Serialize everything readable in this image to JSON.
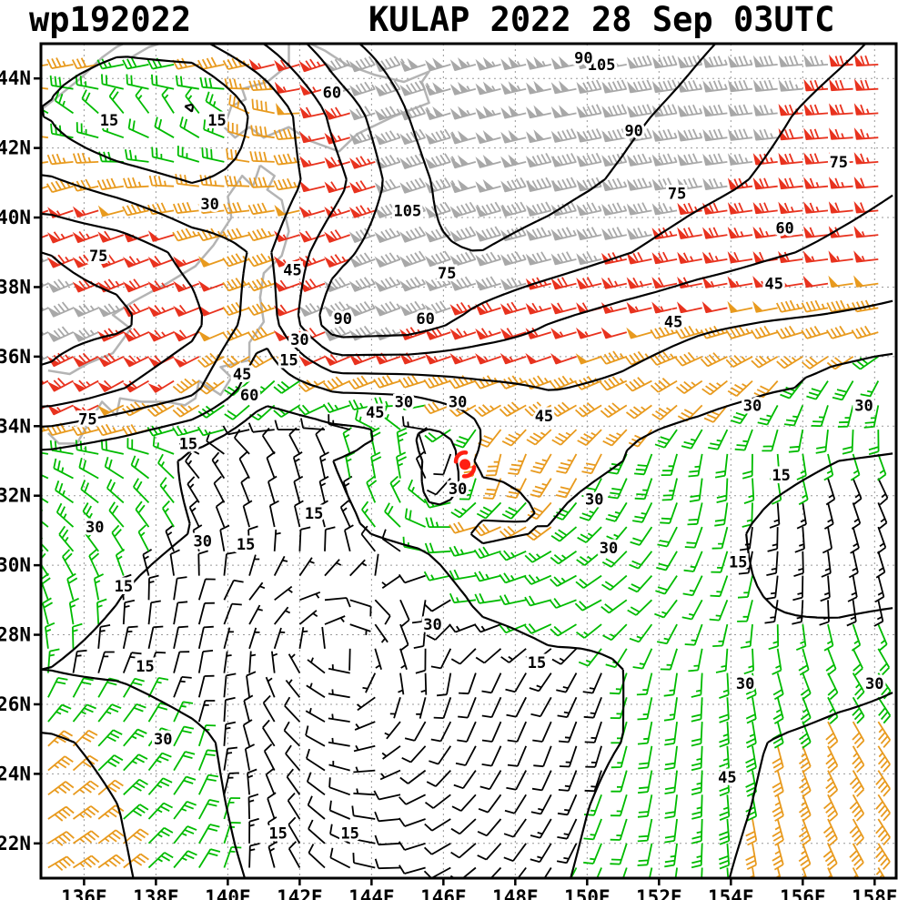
{
  "header": {
    "storm_id": "wp192022",
    "title": "KULAP 2022 28 Sep 03UTC"
  },
  "axes": {
    "lon_min": 134.8,
    "lon_max": 158.6,
    "lat_min": 21.0,
    "lat_max": 45.0,
    "x_ticks": [
      {
        "lon": 136,
        "label": "136E"
      },
      {
        "lon": 138,
        "label": "138E"
      },
      {
        "lon": 140,
        "label": "140E"
      },
      {
        "lon": 142,
        "label": "142E"
      },
      {
        "lon": 144,
        "label": "144E"
      },
      {
        "lon": 146,
        "label": "146E"
      },
      {
        "lon": 148,
        "label": "148E"
      },
      {
        "lon": 150,
        "label": "150E"
      },
      {
        "lon": 152,
        "label": "152E"
      },
      {
        "lon": 154,
        "label": "154E"
      },
      {
        "lon": 156,
        "label": "156E"
      },
      {
        "lon": 158,
        "label": "158E"
      }
    ],
    "y_ticks": [
      {
        "lat": 22,
        "label": "22N"
      },
      {
        "lat": 24,
        "label": "24N"
      },
      {
        "lat": 26,
        "label": "26N"
      },
      {
        "lat": 28,
        "label": "28N"
      },
      {
        "lat": 30,
        "label": "30N"
      },
      {
        "lat": 32,
        "label": "32N"
      },
      {
        "lat": 34,
        "label": "34N"
      },
      {
        "lat": 36,
        "label": "36N"
      },
      {
        "lat": 38,
        "label": "38N"
      },
      {
        "lat": 40,
        "label": "40N"
      },
      {
        "lat": 42,
        "label": "42N"
      },
      {
        "lat": 44,
        "label": "44N"
      }
    ]
  },
  "colors": {
    "contour": "#000000",
    "grid": "#999999",
    "coast": "#b4b4b4",
    "border": "#000000",
    "storm": "#ff1f12",
    "label_halo": "#ffffff"
  },
  "speed_bins": [
    {
      "lt": 15,
      "color": "#000000",
      "name": "calm-light"
    },
    {
      "lt": 30,
      "color": "#00bb00",
      "name": "green-15-30"
    },
    {
      "lt": 50,
      "color": "#e89a1e",
      "name": "orange-30-50"
    },
    {
      "lt": 75,
      "color": "#e8321e",
      "name": "red-50-75"
    },
    {
      "lt": 999,
      "color": "#a8a8a8",
      "name": "gray-75plus"
    }
  ],
  "chart_data": {
    "type": "wind-barb-map",
    "units": "kt",
    "contour_levels": [
      15,
      30,
      45,
      60,
      75,
      90,
      105
    ],
    "barb_spacing_deg": 0.7,
    "storm": {
      "name": "KULAP",
      "lon": 146.6,
      "lat": 32.9
    },
    "grid": {
      "lons": [
        135,
        137,
        139,
        141,
        143,
        145,
        147,
        149,
        151,
        153,
        155,
        157,
        159
      ],
      "lats": [
        45,
        43,
        41,
        39,
        37,
        35,
        33,
        31,
        29,
        27,
        25,
        23,
        21
      ],
      "speed_kt": [
        [
          45,
          35,
          40,
          60,
          85,
          100,
          105,
          105,
          100,
          92,
          85,
          78,
          70
        ],
        [
          30,
          18,
          15,
          35,
          65,
          90,
          105,
          100,
          93,
          86,
          78,
          70,
          63
        ],
        [
          48,
          38,
          30,
          35,
          55,
          85,
          100,
          95,
          88,
          80,
          73,
          66,
          60
        ],
        [
          75,
          70,
          55,
          42,
          70,
          88,
          90,
          84,
          76,
          68,
          62,
          57,
          52
        ],
        [
          80,
          78,
          65,
          35,
          88,
          85,
          70,
          60,
          53,
          48,
          45,
          43,
          41
        ],
        [
          72,
          60,
          48,
          20,
          30,
          32,
          40,
          45,
          42,
          37,
          31,
          29,
          27
        ],
        [
          25,
          20,
          14,
          12,
          15,
          28,
          35,
          36,
          30,
          24,
          17,
          15,
          14
        ],
        [
          28,
          22,
          15,
          8,
          12,
          22,
          33,
          30,
          24,
          18,
          14,
          12,
          15
        ],
        [
          20,
          15,
          10,
          7,
          8,
          12,
          18,
          22,
          20,
          17,
          15,
          13,
          14
        ],
        [
          15,
          13,
          8,
          5,
          5,
          7,
          10,
          13,
          15,
          16,
          18,
          22,
          28
        ],
        [
          32,
          26,
          18,
          12,
          8,
          8,
          10,
          12,
          15,
          22,
          30,
          35,
          38
        ],
        [
          38,
          30,
          20,
          12,
          8,
          8,
          10,
          13,
          17,
          24,
          32,
          40,
          44
        ],
        [
          40,
          32,
          22,
          14,
          10,
          9,
          11,
          14,
          18,
          26,
          35,
          42,
          46
        ]
      ],
      "dir_from_deg": [
        [
          250,
          248,
          250,
          250,
          250,
          252,
          255,
          258,
          260,
          262,
          264,
          266,
          268
        ],
        [
          300,
          320,
          330,
          290,
          255,
          252,
          255,
          258,
          260,
          262,
          264,
          266,
          267
        ],
        [
          252,
          262,
          280,
          272,
          255,
          252,
          254,
          257,
          259,
          261,
          263,
          265,
          266
        ],
        [
          248,
          249,
          250,
          252,
          250,
          250,
          253,
          256,
          258,
          260,
          262,
          263,
          264
        ],
        [
          246,
          247,
          248,
          252,
          248,
          250,
          252,
          254,
          256,
          257,
          258,
          259,
          260
        ],
        [
          242,
          240,
          235,
          215,
          240,
          255,
          250,
          248,
          244,
          232,
          215,
          200,
          192
        ],
        [
          290,
          295,
          315,
          335,
          350,
          0,
          180,
          205,
          200,
          185,
          170,
          158,
          148
        ],
        [
          310,
          320,
          335,
          350,
          345,
          310,
          255,
          235,
          222,
          202,
          184,
          168,
          156
        ],
        [
          340,
          355,
          15,
          45,
          90,
          160,
          265,
          255,
          235,
          210,
          190,
          175,
          162
        ],
        [
          0,
          20,
          10,
          5,
          300,
          165,
          200,
          215,
          200,
          185,
          168,
          152,
          142
        ],
        [
          45,
          40,
          20,
          330,
          290,
          225,
          205,
          200,
          195,
          185,
          168,
          152,
          144
        ],
        [
          55,
          48,
          30,
          345,
          300,
          260,
          225,
          210,
          198,
          184,
          167,
          153,
          143
        ],
        [
          60,
          52,
          35,
          350,
          305,
          265,
          230,
          213,
          200,
          185,
          168,
          155,
          144
        ]
      ]
    },
    "contour_labels": [
      {
        "lon": 136.7,
        "lat": 42.8,
        "v": 15
      },
      {
        "lon": 139.7,
        "lat": 42.8,
        "v": 15
      },
      {
        "lon": 139.5,
        "lat": 40.4,
        "v": 30
      },
      {
        "lon": 141.8,
        "lat": 38.5,
        "v": 45
      },
      {
        "lon": 142.9,
        "lat": 43.6,
        "v": 60
      },
      {
        "lon": 136.4,
        "lat": 38.9,
        "v": 75
      },
      {
        "lon": 143.2,
        "lat": 37.1,
        "v": 90
      },
      {
        "lon": 145.0,
        "lat": 40.2,
        "v": 105
      },
      {
        "lon": 150.4,
        "lat": 44.4,
        "v": 105
      },
      {
        "lon": 149.9,
        "lat": 44.6,
        "v": 90
      },
      {
        "lon": 151.3,
        "lat": 42.5,
        "v": 90
      },
      {
        "lon": 157.0,
        "lat": 41.6,
        "v": 75
      },
      {
        "lon": 152.5,
        "lat": 40.7,
        "v": 75
      },
      {
        "lon": 155.5,
        "lat": 39.7,
        "v": 60
      },
      {
        "lon": 155.2,
        "lat": 38.1,
        "v": 45
      },
      {
        "lon": 146.1,
        "lat": 38.4,
        "v": 75
      },
      {
        "lon": 145.5,
        "lat": 37.1,
        "v": 60
      },
      {
        "lon": 142.0,
        "lat": 36.5,
        "v": 30
      },
      {
        "lon": 141.7,
        "lat": 35.9,
        "v": 15
      },
      {
        "lon": 140.4,
        "lat": 35.5,
        "v": 45
      },
      {
        "lon": 140.6,
        "lat": 34.9,
        "v": 60
      },
      {
        "lon": 136.1,
        "lat": 34.2,
        "v": 75
      },
      {
        "lon": 144.1,
        "lat": 34.4,
        "v": 45
      },
      {
        "lon": 144.9,
        "lat": 34.7,
        "v": 30
      },
      {
        "lon": 146.4,
        "lat": 34.7,
        "v": 30
      },
      {
        "lon": 146.4,
        "lat": 32.2,
        "v": 30
      },
      {
        "lon": 148.8,
        "lat": 34.3,
        "v": 45
      },
      {
        "lon": 152.4,
        "lat": 37.0,
        "v": 45
      },
      {
        "lon": 154.6,
        "lat": 34.6,
        "v": 30
      },
      {
        "lon": 157.7,
        "lat": 34.6,
        "v": 30
      },
      {
        "lon": 155.4,
        "lat": 32.6,
        "v": 15
      },
      {
        "lon": 150.2,
        "lat": 31.9,
        "v": 30
      },
      {
        "lon": 150.6,
        "lat": 30.5,
        "v": 30
      },
      {
        "lon": 154.2,
        "lat": 30.1,
        "v": 15
      },
      {
        "lon": 142.4,
        "lat": 31.5,
        "v": 15
      },
      {
        "lon": 139.3,
        "lat": 30.7,
        "v": 30
      },
      {
        "lon": 140.5,
        "lat": 30.6,
        "v": 15
      },
      {
        "lon": 136.3,
        "lat": 31.1,
        "v": 30
      },
      {
        "lon": 138.9,
        "lat": 33.5,
        "v": 15
      },
      {
        "lon": 137.1,
        "lat": 29.4,
        "v": 15
      },
      {
        "lon": 137.7,
        "lat": 27.1,
        "v": 15
      },
      {
        "lon": 145.7,
        "lat": 28.3,
        "v": 30
      },
      {
        "lon": 148.6,
        "lat": 27.2,
        "v": 15
      },
      {
        "lon": 154.4,
        "lat": 26.6,
        "v": 30
      },
      {
        "lon": 158.0,
        "lat": 26.6,
        "v": 30
      },
      {
        "lon": 138.2,
        "lat": 25.0,
        "v": 30
      },
      {
        "lon": 153.9,
        "lat": 23.9,
        "v": 45
      },
      {
        "lon": 141.4,
        "lat": 22.3,
        "v": 15
      },
      {
        "lon": 143.4,
        "lat": 22.3,
        "v": 15
      }
    ],
    "coastlines": [
      [
        [
          134.8,
          43.1
        ],
        [
          135.3,
          43.5
        ],
        [
          135.9,
          44.0
        ],
        [
          136.5,
          44.6
        ],
        [
          136.9,
          44.9
        ],
        [
          137.1,
          45.0
        ]
      ],
      [
        [
          137.3,
          44.6
        ],
        [
          137.8,
          44.9
        ],
        [
          138.1,
          45.0
        ]
      ],
      [
        [
          139.9,
          42.6
        ],
        [
          140.2,
          42.3
        ],
        [
          140.6,
          42.6
        ],
        [
          141.0,
          42.3
        ],
        [
          141.7,
          42.6
        ],
        [
          142.3,
          42.2
        ],
        [
          143.1,
          41.9
        ],
        [
          143.6,
          42.4
        ],
        [
          144.6,
          42.9
        ],
        [
          145.6,
          43.3
        ],
        [
          145.4,
          43.9
        ],
        [
          145.6,
          44.2
        ],
        [
          144.9,
          43.9
        ],
        [
          144.1,
          44.1
        ],
        [
          143.3,
          44.4
        ],
        [
          142.7,
          44.8
        ],
        [
          142.3,
          45.0
        ]
      ],
      [
        [
          139.9,
          42.6
        ],
        [
          140.1,
          43.2
        ],
        [
          140.5,
          43.4
        ],
        [
          140.4,
          43.7
        ],
        [
          141.1,
          43.9
        ],
        [
          141.7,
          44.4
        ],
        [
          141.7,
          45.0
        ]
      ],
      [
        [
          140.9,
          41.5
        ],
        [
          141.3,
          41.2
        ],
        [
          141.1,
          40.8
        ],
        [
          141.5,
          40.5
        ],
        [
          141.7,
          39.6
        ],
        [
          141.5,
          38.9
        ],
        [
          141.0,
          38.4
        ],
        [
          140.9,
          37.7
        ],
        [
          141.0,
          37.0
        ],
        [
          140.6,
          36.4
        ],
        [
          140.6,
          35.9
        ],
        [
          139.8,
          35.7
        ],
        [
          140.1,
          35.4
        ],
        [
          139.8,
          34.9
        ],
        [
          139.2,
          35.3
        ],
        [
          139.1,
          34.8
        ],
        [
          138.8,
          34.6
        ],
        [
          138.3,
          34.7
        ],
        [
          137.6,
          34.7
        ],
        [
          137.0,
          34.8
        ],
        [
          136.9,
          34.3
        ],
        [
          136.5,
          34.7
        ],
        [
          136.2,
          34.2
        ],
        [
          135.8,
          33.5
        ],
        [
          135.3,
          33.5
        ],
        [
          135.0,
          33.8
        ]
      ],
      [
        [
          135.0,
          35.6
        ],
        [
          135.6,
          35.5
        ],
        [
          136.1,
          35.8
        ],
        [
          136.8,
          36.1
        ],
        [
          137.3,
          36.8
        ],
        [
          136.8,
          37.2
        ],
        [
          137.4,
          37.6
        ],
        [
          138.3,
          38.1
        ],
        [
          139.1,
          38.6
        ],
        [
          139.6,
          39.2
        ],
        [
          140.1,
          40.0
        ],
        [
          140.0,
          40.6
        ],
        [
          140.4,
          41.2
        ],
        [
          140.7,
          40.9
        ],
        [
          140.8,
          41.2
        ],
        [
          140.9,
          41.5
        ]
      ]
    ]
  }
}
